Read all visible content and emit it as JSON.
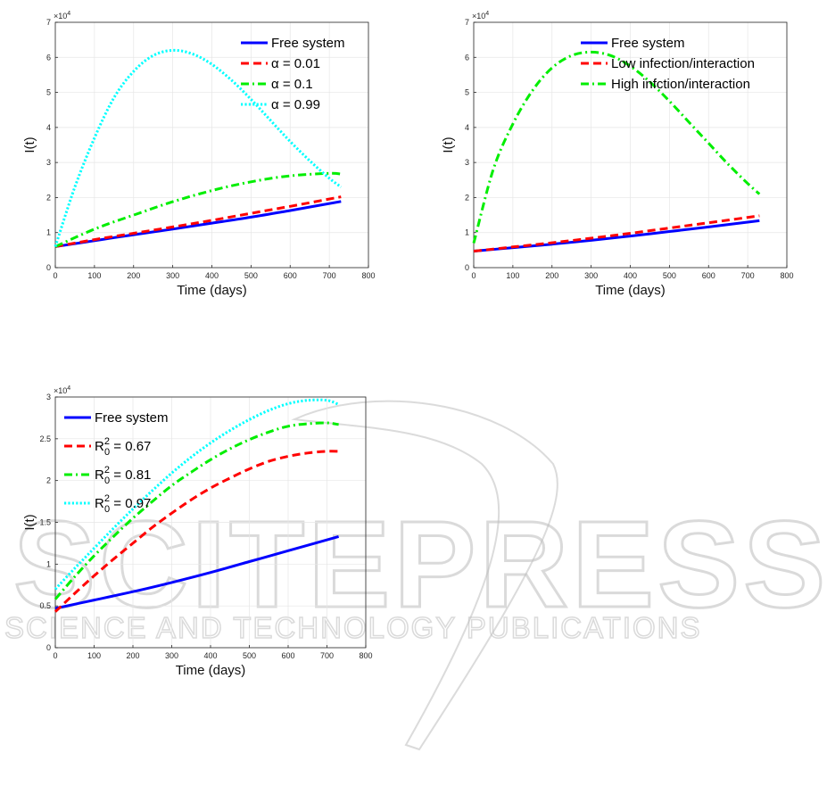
{
  "watermark": {
    "main": "SCITEPRESS",
    "sub": "SCIENCE AND TECHNOLOGY PUBLICATIONS"
  },
  "chart_data": [
    {
      "type": "line",
      "xlabel": "Time (days)",
      "ylabel": "I(t)",
      "xlim": [
        0,
        800
      ],
      "ylim": [
        0,
        70000
      ],
      "exponent_label": "×10",
      "exponent_power": "4",
      "xticks": [
        0,
        100,
        200,
        300,
        400,
        500,
        600,
        700,
        800
      ],
      "yticks": [
        0,
        1,
        2,
        3,
        4,
        5,
        6,
        7
      ],
      "grid": true,
      "legend_position": "top-right",
      "series": [
        {
          "name": "Free system",
          "color": "#0000ff",
          "style": "solid",
          "x": [
            0,
            100,
            200,
            300,
            400,
            500,
            600,
            730
          ],
          "y": [
            6000,
            7700,
            9400,
            11000,
            12700,
            14400,
            16300,
            18900
          ]
        },
        {
          "name": "α = 0.01",
          "color": "#ff0000",
          "style": "dashed",
          "x": [
            0,
            100,
            200,
            300,
            400,
            500,
            600,
            730
          ],
          "y": [
            6000,
            8000,
            9800,
            11600,
            13500,
            15500,
            17500,
            20200
          ]
        },
        {
          "name": "α = 0.1",
          "color": "#00ee00",
          "style": "dashdot",
          "x": [
            0,
            100,
            200,
            300,
            400,
            500,
            600,
            700,
            730
          ],
          "y": [
            6000,
            11000,
            15000,
            18800,
            22000,
            24500,
            26200,
            26900,
            26700
          ]
        },
        {
          "name": "α = 0.99",
          "color": "#00ffff",
          "style": "dotted",
          "x": [
            0,
            50,
            100,
            150,
            200,
            250,
            300,
            350,
            400,
            450,
            500,
            550,
            600,
            650,
            700,
            730
          ],
          "y": [
            6000,
            23000,
            37000,
            48500,
            56000,
            60500,
            62000,
            61000,
            58000,
            53500,
            48000,
            42000,
            36000,
            30500,
            25500,
            23000
          ]
        }
      ]
    },
    {
      "type": "line",
      "xlabel": "Time (days)",
      "ylabel": "I(t)",
      "xlim": [
        0,
        800
      ],
      "ylim": [
        0,
        70000
      ],
      "exponent_label": "×10",
      "exponent_power": "4",
      "xticks": [
        0,
        100,
        200,
        300,
        400,
        500,
        600,
        700,
        800
      ],
      "yticks": [
        0,
        1,
        2,
        3,
        4,
        5,
        6,
        7
      ],
      "grid": true,
      "legend_position": "top",
      "series": [
        {
          "name": "Free system",
          "color": "#0000ff",
          "style": "solid",
          "x": [
            0,
            100,
            200,
            300,
            400,
            500,
            600,
            730
          ],
          "y": [
            4700,
            5700,
            6700,
            7800,
            9000,
            10300,
            11600,
            13400
          ]
        },
        {
          "name": "Low infection/interaction",
          "color": "#ff0000",
          "style": "dashed",
          "x": [
            0,
            100,
            200,
            300,
            400,
            500,
            600,
            730
          ],
          "y": [
            4700,
            5900,
            7100,
            8400,
            9800,
            11300,
            12800,
            14800
          ]
        },
        {
          "name": "High infction/interaction",
          "color": "#00ee00",
          "style": "dashdot",
          "x": [
            0,
            50,
            100,
            150,
            200,
            250,
            300,
            350,
            400,
            450,
            500,
            550,
            600,
            650,
            700,
            730
          ],
          "y": [
            7000,
            28000,
            41000,
            50500,
            57000,
            60500,
            61500,
            60500,
            57500,
            53000,
            47500,
            41500,
            35500,
            29500,
            24000,
            21000
          ]
        }
      ]
    },
    {
      "type": "line",
      "xlabel": "Time (days)",
      "ylabel": "I(t)",
      "xlim": [
        0,
        800
      ],
      "ylim": [
        0,
        30000
      ],
      "exponent_label": "×10",
      "exponent_power": "4",
      "xticks": [
        0,
        100,
        200,
        300,
        400,
        500,
        600,
        700,
        800
      ],
      "yticks": [
        0,
        0.5,
        1,
        1.5,
        2,
        2.5,
        3
      ],
      "grid": true,
      "legend_position": "top-left",
      "series": [
        {
          "name": "Free system",
          "legend_prefix": "Free system",
          "legend_sup": "",
          "legend_sub": "",
          "legend_suffix": "",
          "color": "#0000ff",
          "style": "solid",
          "x": [
            0,
            100,
            200,
            300,
            400,
            500,
            600,
            730
          ],
          "y": [
            4700,
            5700,
            6700,
            7800,
            9000,
            10300,
            11600,
            13300
          ]
        },
        {
          "name": "R0^2 = 0.67",
          "legend_prefix": "R",
          "legend_sup": "2",
          "legend_sub": "0",
          "legend_suffix": " = 0.67",
          "color": "#ff0000",
          "style": "dashed",
          "x": [
            0,
            50,
            100,
            150,
            200,
            250,
            300,
            350,
            400,
            450,
            500,
            550,
            600,
            650,
            700,
            730
          ],
          "y": [
            4300,
            6500,
            8600,
            10600,
            12500,
            14400,
            16100,
            17700,
            19100,
            20300,
            21400,
            22300,
            22900,
            23300,
            23500,
            23500
          ]
        },
        {
          "name": "R0^2 = 0.81",
          "legend_prefix": "R",
          "legend_sup": "2",
          "legend_sub": "0",
          "legend_suffix": " = 0.81",
          "color": "#00ee00",
          "style": "dashdot",
          "x": [
            0,
            50,
            100,
            150,
            200,
            250,
            300,
            350,
            400,
            450,
            500,
            550,
            600,
            650,
            700,
            730
          ],
          "y": [
            5800,
            8500,
            11000,
            13300,
            15500,
            17500,
            19400,
            21000,
            22500,
            23800,
            24900,
            25800,
            26500,
            26800,
            26900,
            26700
          ]
        },
        {
          "name": "R0^2 = 0.97",
          "legend_prefix": "R",
          "legend_sup": "2",
          "legend_sub": "0",
          "legend_suffix": " = 0.97",
          "color": "#00ffff",
          "style": "dotted",
          "x": [
            0,
            50,
            100,
            150,
            200,
            250,
            300,
            350,
            400,
            450,
            500,
            550,
            600,
            650,
            700,
            730
          ],
          "y": [
            7000,
            9500,
            11900,
            14300,
            16600,
            18800,
            20900,
            22800,
            24500,
            26000,
            27300,
            28400,
            29200,
            29600,
            29600,
            29100
          ]
        }
      ]
    }
  ]
}
